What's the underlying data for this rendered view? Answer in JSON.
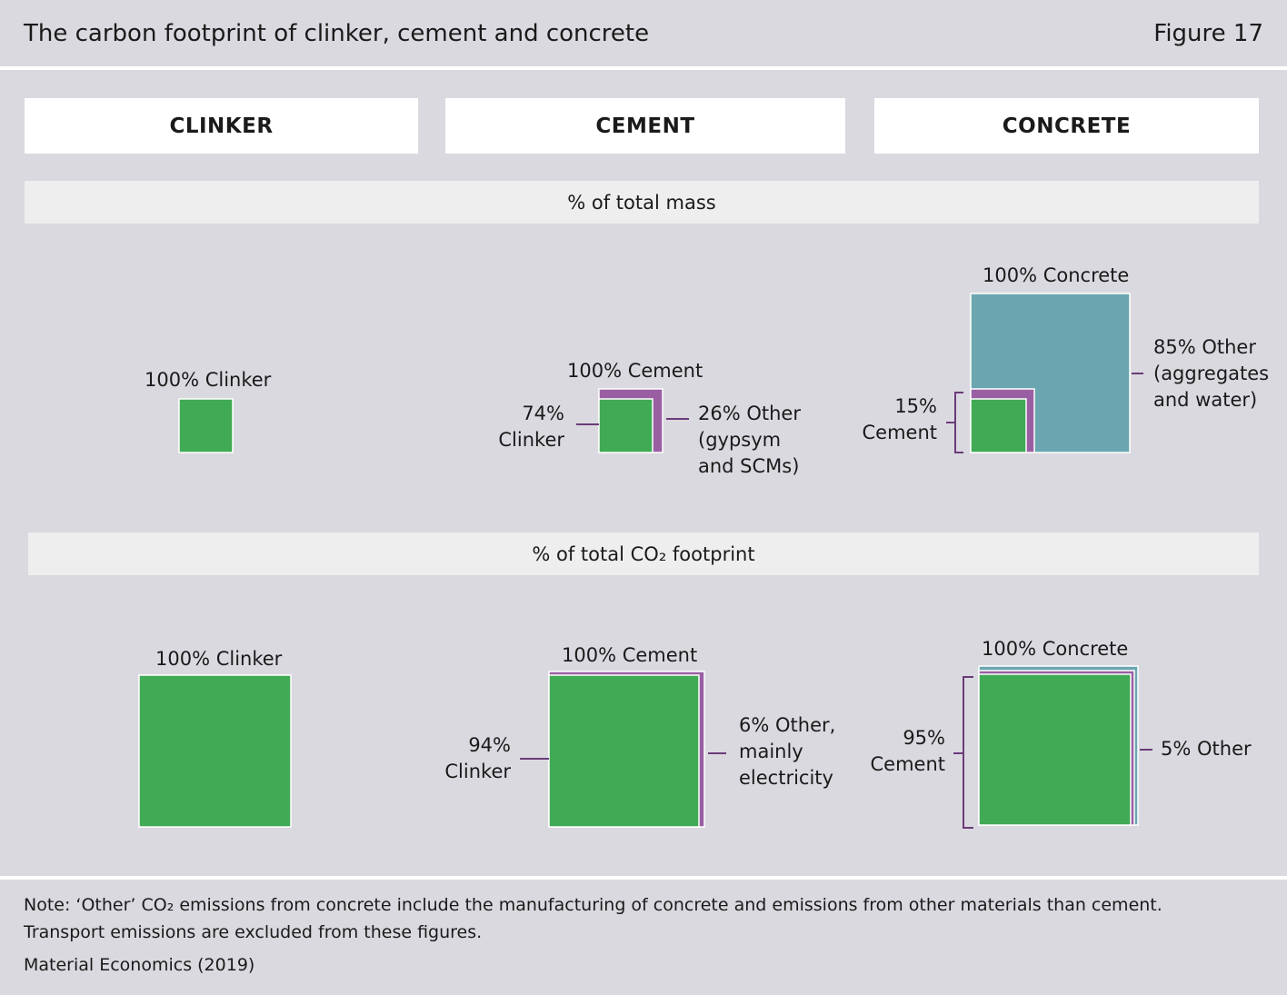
{
  "header": {
    "title": "The carbon footprint of clinker, cement and concrete",
    "figure": "Figure 17"
  },
  "columns": [
    "CLINKER",
    "CEMENT",
    "CONCRETE"
  ],
  "sections": {
    "mass": "% of total mass",
    "co2": "% of total CO₂ footprint"
  },
  "mass_labels": {
    "clinker_top": "100% Clinker",
    "cement_top": "100% Cement",
    "cement_clinker_1": "74%",
    "cement_clinker_2": "Clinker",
    "cement_other_1": "26% Other",
    "cement_other_2": "(gypsym",
    "cement_other_3": "and SCMs)",
    "concrete_top": "100% Concrete",
    "concrete_cement_1": "15%",
    "concrete_cement_2": "Cement",
    "concrete_other_1": "85% Other",
    "concrete_other_2": "(aggregates",
    "concrete_other_3": "and water)"
  },
  "co2_labels": {
    "clinker_top": "100% Clinker",
    "cement_top": "100% Cement",
    "cement_clinker_1": "94%",
    "cement_clinker_2": "Clinker",
    "cement_other_1": "6% Other,",
    "cement_other_2": "mainly",
    "cement_other_3": "electricity",
    "concrete_top": "100% Concrete",
    "concrete_cement_1": "95%",
    "concrete_cement_2": "Cement",
    "concrete_other_1": "5% Other"
  },
  "colors": {
    "clinker": "#40aa55",
    "cement_other": "#9a5fa3",
    "concrete_other": "#6ba6b0",
    "bracket": "#6b3b7a"
  },
  "chart_data": {
    "type": "area",
    "panels": [
      {
        "metric": "% of total mass",
        "product": "Clinker",
        "parts": [
          {
            "name": "Clinker",
            "value": 100
          }
        ]
      },
      {
        "metric": "% of total mass",
        "product": "Cement",
        "parts": [
          {
            "name": "Clinker",
            "value": 74
          },
          {
            "name": "Other (gypsym and SCMs)",
            "value": 26
          }
        ]
      },
      {
        "metric": "% of total mass",
        "product": "Concrete",
        "parts": [
          {
            "name": "Cement",
            "value": 15
          },
          {
            "name": "Other (aggregates and water)",
            "value": 85
          }
        ]
      },
      {
        "metric": "% of total CO2 footprint",
        "product": "Clinker",
        "parts": [
          {
            "name": "Clinker",
            "value": 100
          }
        ]
      },
      {
        "metric": "% of total CO2 footprint",
        "product": "Cement",
        "parts": [
          {
            "name": "Clinker",
            "value": 94
          },
          {
            "name": "Other, mainly electricity",
            "value": 6
          }
        ]
      },
      {
        "metric": "% of total CO2 footprint",
        "product": "Concrete",
        "parts": [
          {
            "name": "Cement",
            "value": 95
          },
          {
            "name": "Other",
            "value": 5
          }
        ]
      }
    ]
  },
  "footer": {
    "note_1": "Note: ‘Other’ CO₂ emissions from concrete include the manufacturing of concrete and emissions from other materials than cement.",
    "note_2": "Transport emissions are excluded from these figures.",
    "source": "Material Economics (2019)"
  }
}
